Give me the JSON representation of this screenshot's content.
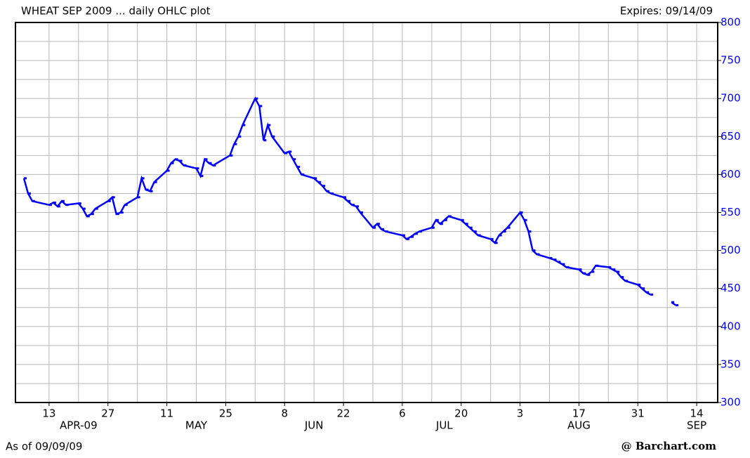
{
  "chart_data": {
    "type": "line",
    "title": "WHEAT SEP 2009 ... daily OHLC plot",
    "subtitle": "Expires: 09/14/09",
    "footnote": "As of 09/09/09",
    "source": "@ Barchart.com",
    "color": "#0000ff",
    "grid": true,
    "y_axis_side": "right",
    "x": [
      "2009-04-07",
      "2009-04-08",
      "2009-04-09",
      "2009-04-13",
      "2009-04-14",
      "2009-04-15",
      "2009-04-16",
      "2009-04-17",
      "2009-04-20",
      "2009-04-21",
      "2009-04-22",
      "2009-04-23",
      "2009-04-24",
      "2009-04-27",
      "2009-04-28",
      "2009-04-29",
      "2009-04-30",
      "2009-05-01",
      "2009-05-04",
      "2009-05-05",
      "2009-05-06",
      "2009-05-07",
      "2009-05-08",
      "2009-05-11",
      "2009-05-12",
      "2009-05-13",
      "2009-05-14",
      "2009-05-15",
      "2009-05-18",
      "2009-05-19",
      "2009-05-20",
      "2009-05-21",
      "2009-05-22",
      "2009-05-26",
      "2009-05-27",
      "2009-05-28",
      "2009-05-29",
      "2009-06-01",
      "2009-06-02",
      "2009-06-03",
      "2009-06-04",
      "2009-06-05",
      "2009-06-08",
      "2009-06-09",
      "2009-06-10",
      "2009-06-11",
      "2009-06-12",
      "2009-06-15",
      "2009-06-16",
      "2009-06-17",
      "2009-06-18",
      "2009-06-19",
      "2009-06-22",
      "2009-06-23",
      "2009-06-24",
      "2009-06-25",
      "2009-06-26",
      "2009-06-29",
      "2009-06-30",
      "2009-07-01",
      "2009-07-02",
      "2009-07-06",
      "2009-07-07",
      "2009-07-08",
      "2009-07-09",
      "2009-07-10",
      "2009-07-13",
      "2009-07-14",
      "2009-07-15",
      "2009-07-16",
      "2009-07-17",
      "2009-07-20",
      "2009-07-21",
      "2009-07-22",
      "2009-07-23",
      "2009-07-24",
      "2009-07-27",
      "2009-07-28",
      "2009-07-29",
      "2009-07-30",
      "2009-07-31",
      "2009-08-03",
      "2009-08-04",
      "2009-08-05",
      "2009-08-06",
      "2009-08-07",
      "2009-08-10",
      "2009-08-11",
      "2009-08-12",
      "2009-08-13",
      "2009-08-14",
      "2009-08-17",
      "2009-08-18",
      "2009-08-19",
      "2009-08-20",
      "2009-08-21",
      "2009-08-24",
      "2009-08-25",
      "2009-08-26",
      "2009-08-27",
      "2009-08-28",
      "2009-08-31",
      "2009-09-01",
      "2009-09-02",
      "2009-09-03",
      "2009-09-04",
      "2009-09-08",
      "2009-09-09"
    ],
    "values": [
      595,
      575,
      565,
      560,
      563,
      558,
      565,
      560,
      562,
      555,
      545,
      548,
      555,
      565,
      570,
      548,
      550,
      560,
      570,
      595,
      580,
      578,
      590,
      605,
      615,
      620,
      618,
      612,
      608,
      598,
      620,
      615,
      612,
      625,
      640,
      650,
      665,
      700,
      690,
      645,
      665,
      650,
      628,
      630,
      620,
      610,
      600,
      595,
      590,
      585,
      578,
      575,
      570,
      565,
      560,
      558,
      550,
      530,
      535,
      528,
      525,
      520,
      515,
      518,
      522,
      525,
      530,
      540,
      535,
      540,
      545,
      540,
      535,
      530,
      525,
      520,
      515,
      510,
      520,
      525,
      530,
      550,
      540,
      525,
      500,
      495,
      490,
      488,
      485,
      482,
      478,
      475,
      470,
      468,
      472,
      480,
      478,
      475,
      472,
      465,
      460,
      455,
      450,
      445,
      442,
      null,
      432,
      428
    ],
    "xlim": [
      "2009-04-05",
      "2009-09-19"
    ],
    "xticks": [
      {
        "value": "2009-04-13",
        "label": "13"
      },
      {
        "value": "2009-04-27",
        "label": "27"
      },
      {
        "value": "2009-05-11",
        "label": "11"
      },
      {
        "value": "2009-05-25",
        "label": "25"
      },
      {
        "value": "2009-06-08",
        "label": "8"
      },
      {
        "value": "2009-06-22",
        "label": "22"
      },
      {
        "value": "2009-07-06",
        "label": "6"
      },
      {
        "value": "2009-07-20",
        "label": "20"
      },
      {
        "value": "2009-08-03",
        "label": "3"
      },
      {
        "value": "2009-08-17",
        "label": "17"
      },
      {
        "value": "2009-08-31",
        "label": "31"
      },
      {
        "value": "2009-09-14",
        "label": "14"
      }
    ],
    "x_minor_ticks": [
      "2009-04-20",
      "2009-05-04",
      "2009-05-18",
      "2009-06-01",
      "2009-06-15",
      "2009-06-29",
      "2009-07-13",
      "2009-07-27",
      "2009-08-10",
      "2009-08-24",
      "2009-09-07"
    ],
    "month_labels": [
      {
        "value": "2009-04-20",
        "label": "APR-09"
      },
      {
        "value": "2009-05-18",
        "label": "MAY"
      },
      {
        "value": "2009-06-15",
        "label": "JUN"
      },
      {
        "value": "2009-07-16",
        "label": "JUL"
      },
      {
        "value": "2009-08-17",
        "label": "AUG"
      },
      {
        "value": "2009-09-14",
        "label": "SEP"
      }
    ],
    "ylim": [
      300,
      800
    ],
    "yticks": [
      300,
      350,
      400,
      450,
      500,
      550,
      600,
      650,
      700,
      750,
      800
    ],
    "y_minor_ticks": [
      325,
      375,
      425,
      475,
      525,
      575,
      625,
      675,
      725,
      775
    ]
  }
}
